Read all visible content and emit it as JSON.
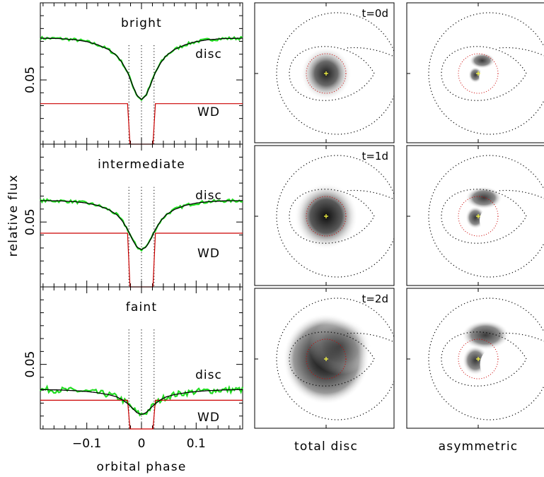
{
  "axis_labels": {
    "x": "orbital phase",
    "y": "relative flux",
    "col_total": "total disc",
    "col_asym": "asymmetric"
  },
  "colors": {
    "data": "#22dd22",
    "model": "#000000",
    "wd_component": "#cc0000",
    "roche": "#000000",
    "wd_marker": "#ffff44"
  },
  "chart_data": [
    {
      "type": "line",
      "panel": "light curves",
      "xlabel": "orbital phase",
      "ylabel": "relative flux",
      "xlim": [
        -0.185,
        0.185
      ],
      "x_ticks": [
        -0.1,
        0,
        0.1
      ],
      "x_tick_labels": [
        "−0.1",
        "0",
        "0.1"
      ],
      "y_tick_label": "0.05",
      "contact_phases": [
        -0.023,
        0,
        0.023
      ],
      "ylim": [
        0.0,
        0.11
      ],
      "rows": [
        {
          "title": "bright",
          "disc_label": "disc",
          "wd_label": "WD",
          "noise": 0.0012,
          "series": [
            {
              "name": "disc",
              "points": [
                [
                  -0.185,
                  0.0825
                ],
                [
                  -0.15,
                  0.0822
                ],
                [
                  -0.12,
                  0.0812
                ],
                [
                  -0.1,
                  0.0798
                ],
                [
                  -0.08,
                  0.0774
                ],
                [
                  -0.06,
                  0.0736
                ],
                [
                  -0.045,
                  0.0688
                ],
                [
                  -0.035,
                  0.0632
                ],
                [
                  -0.025,
                  0.0555
                ],
                [
                  -0.015,
                  0.0445
                ],
                [
                  -0.008,
                  0.0378
                ],
                [
                  0,
                  0.0348
                ],
                [
                  0.008,
                  0.0378
                ],
                [
                  0.015,
                  0.0445
                ],
                [
                  0.025,
                  0.0555
                ],
                [
                  0.035,
                  0.0632
                ],
                [
                  0.045,
                  0.0688
                ],
                [
                  0.06,
                  0.0736
                ],
                [
                  0.08,
                  0.0774
                ],
                [
                  0.1,
                  0.0798
                ],
                [
                  0.12,
                  0.0812
                ],
                [
                  0.15,
                  0.0822
                ],
                [
                  0.185,
                  0.0825
                ]
              ]
            },
            {
              "name": "WD",
              "points": [
                [
                  -0.185,
                  0.0315
                ],
                [
                  -0.0255,
                  0.0315
                ],
                [
                  -0.021,
                  0.0
                ],
                [
                  0.021,
                  0.0
                ],
                [
                  0.0255,
                  0.0315
                ],
                [
                  0.185,
                  0.0315
                ]
              ]
            }
          ]
        },
        {
          "title": "intermediate",
          "disc_label": "disc",
          "wd_label": "WD",
          "noise": 0.0012,
          "series": [
            {
              "name": "disc",
              "points": [
                [
                  -0.185,
                  0.0665
                ],
                [
                  -0.15,
                  0.0663
                ],
                [
                  -0.12,
                  0.0656
                ],
                [
                  -0.1,
                  0.0646
                ],
                [
                  -0.08,
                  0.0628
                ],
                [
                  -0.06,
                  0.0596
                ],
                [
                  -0.045,
                  0.0556
                ],
                [
                  -0.035,
                  0.0508
                ],
                [
                  -0.025,
                  0.044
                ],
                [
                  -0.015,
                  0.0352
                ],
                [
                  -0.008,
                  0.0306
                ],
                [
                  0,
                  0.0288
                ],
                [
                  0.008,
                  0.0306
                ],
                [
                  0.015,
                  0.0352
                ],
                [
                  0.025,
                  0.044
                ],
                [
                  0.035,
                  0.0508
                ],
                [
                  0.045,
                  0.0556
                ],
                [
                  0.06,
                  0.0596
                ],
                [
                  0.08,
                  0.0628
                ],
                [
                  0.1,
                  0.0646
                ],
                [
                  0.12,
                  0.0656
                ],
                [
                  0.15,
                  0.0663
                ],
                [
                  0.185,
                  0.0665
                ]
              ]
            },
            {
              "name": "WD",
              "points": [
                [
                  -0.185,
                  0.0414
                ],
                [
                  -0.0255,
                  0.0414
                ],
                [
                  -0.021,
                  0.0
                ],
                [
                  0.021,
                  0.0
                ],
                [
                  0.0255,
                  0.0414
                ],
                [
                  0.185,
                  0.0414
                ]
              ]
            }
          ]
        },
        {
          "title": "faint",
          "disc_label": "disc",
          "wd_label": "WD",
          "noise": 0.0024,
          "series": [
            {
              "name": "disc",
              "points": [
                [
                  -0.185,
                  0.0305
                ],
                [
                  -0.15,
                  0.0302
                ],
                [
                  -0.12,
                  0.0296
                ],
                [
                  -0.1,
                  0.029
                ],
                [
                  -0.08,
                  0.028
                ],
                [
                  -0.06,
                  0.0266
                ],
                [
                  -0.045,
                  0.0248
                ],
                [
                  -0.035,
                  0.0226
                ],
                [
                  -0.025,
                  0.0195
                ],
                [
                  -0.015,
                  0.0154
                ],
                [
                  -0.008,
                  0.0125
                ],
                [
                  0,
                  0.0112
                ],
                [
                  0.008,
                  0.0125
                ],
                [
                  0.015,
                  0.0154
                ],
                [
                  0.025,
                  0.0195
                ],
                [
                  0.035,
                  0.0226
                ],
                [
                  0.045,
                  0.0248
                ],
                [
                  0.06,
                  0.0266
                ],
                [
                  0.08,
                  0.028
                ],
                [
                  0.1,
                  0.029
                ],
                [
                  0.12,
                  0.0296
                ],
                [
                  0.15,
                  0.0302
                ],
                [
                  0.185,
                  0.0305
                ]
              ]
            },
            {
              "name": "WD",
              "points": [
                [
                  -0.185,
                  0.0222
                ],
                [
                  -0.0255,
                  0.0222
                ],
                [
                  -0.021,
                  0.0
                ],
                [
                  0.021,
                  0.0
                ],
                [
                  0.0255,
                  0.0222
                ],
                [
                  0.185,
                  0.0222
                ]
              ]
            }
          ]
        }
      ]
    },
    {
      "type": "heatmap",
      "panel": "disc maps",
      "columns": [
        "total disc",
        "asymmetric"
      ],
      "rows": [
        {
          "time": "t=0d",
          "total": {
            "size": 1.0,
            "peak": 0.72
          },
          "asym": {
            "blob": "small"
          }
        },
        {
          "time": "t=1d",
          "total": {
            "size": 1.25,
            "peak": 0.88
          },
          "asym": {
            "blob": "medium"
          }
        },
        {
          "time": "t=2d",
          "total": {
            "size": 1.7,
            "peak": 1.0
          },
          "asym": {
            "blob": "large"
          }
        }
      ]
    }
  ]
}
